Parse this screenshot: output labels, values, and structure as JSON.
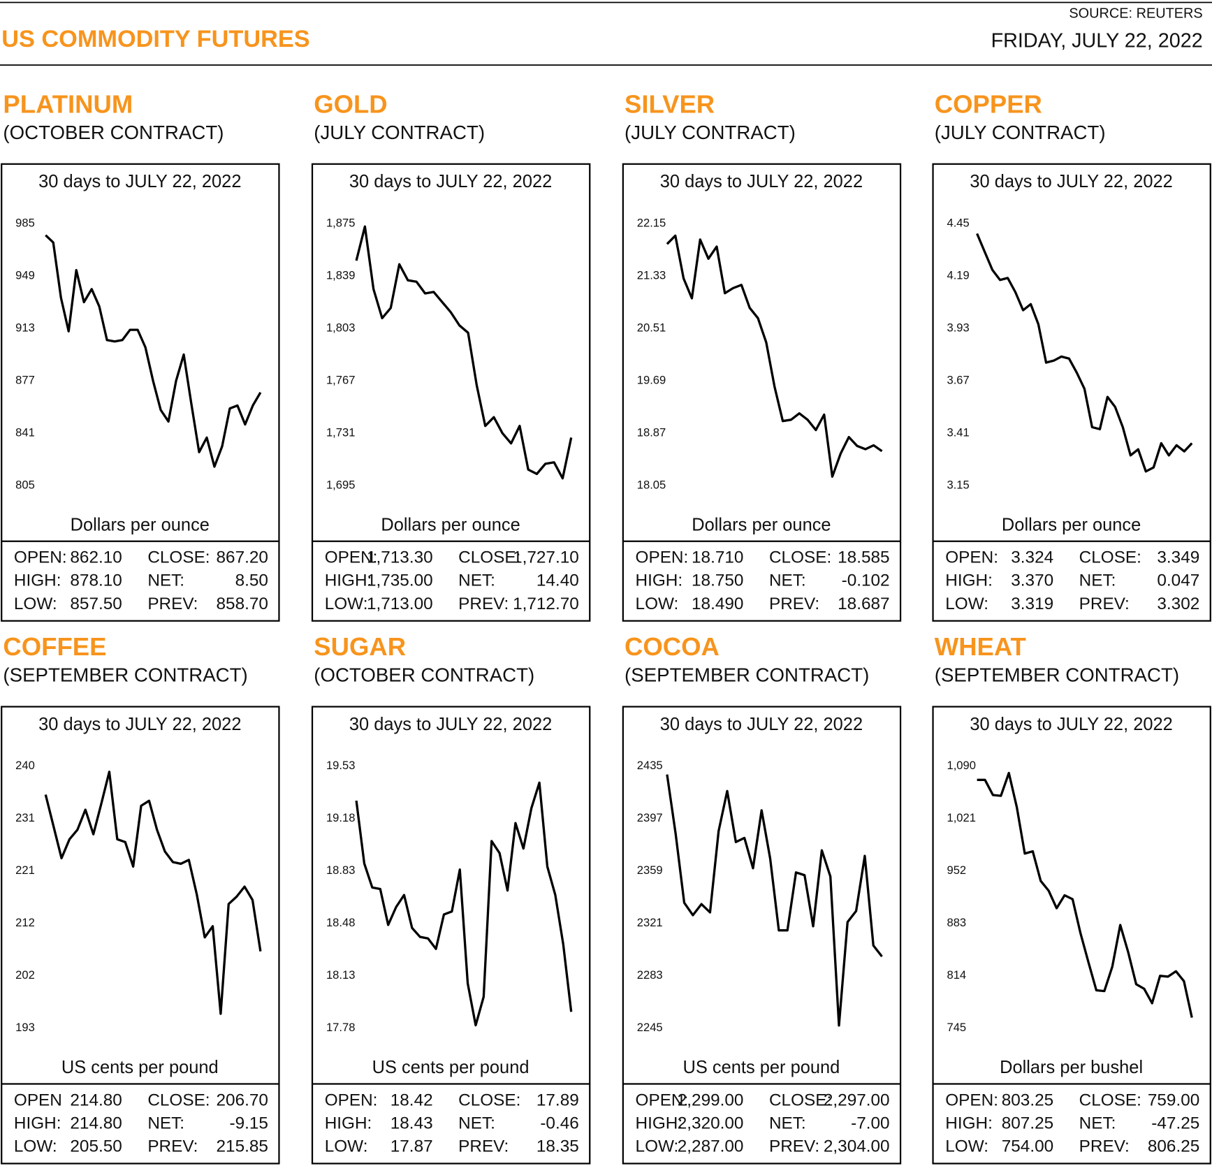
{
  "header": {
    "title": "US COMMODITY FUTURES",
    "source": "SOURCE: REUTERS",
    "date": "FRIDAY, JULY 22, 2022"
  },
  "chart_data": [
    {
      "type": "line",
      "title": "PLATINUM",
      "subtitle": "(OCTOBER CONTRACT)",
      "note": "30 days to JULY 22, 2022",
      "y_label": "Dollars per ounce",
      "color": "#000000",
      "values": [
        977,
        972,
        934,
        911,
        953,
        931,
        940,
        928,
        905,
        904,
        905,
        912,
        912,
        900,
        877,
        857,
        849,
        877,
        895,
        861,
        828,
        838,
        818,
        832,
        858,
        860,
        847,
        860,
        869
      ],
      "ylim": [
        805,
        985
      ],
      "yticks": [
        985,
        949,
        913,
        877,
        841,
        805
      ],
      "stats": [
        [
          "OPEN:",
          "862.10",
          "CLOSE:",
          "867.20"
        ],
        [
          "HIGH:",
          "878.10",
          "NET:",
          "8.50"
        ],
        [
          "LOW:",
          "857.50",
          "PREV:",
          "858.70"
        ]
      ]
    },
    {
      "type": "line",
      "title": "GOLD",
      "subtitle": "(JULY CONTRACT)",
      "note": "30 days to JULY 22, 2022",
      "y_label": "Dollars per ounce",
      "color": "#000000",
      "values": [
        1849.5,
        1873,
        1830,
        1810,
        1817,
        1847,
        1836,
        1835,
        1827,
        1828,
        1821,
        1814,
        1805,
        1800,
        1764,
        1736,
        1742,
        1731,
        1724,
        1736,
        1706,
        1703,
        1710,
        1711,
        1700,
        1728
      ],
      "ylim": [
        1695,
        1875
      ],
      "yticks": [
        {
          "value": 1875,
          "label": "1,875"
        },
        {
          "value": 1839,
          "label": "1,839"
        },
        {
          "value": 1803,
          "label": "1,803"
        },
        {
          "value": 1767,
          "label": "1,767"
        },
        {
          "value": 1731,
          "label": "1,731"
        },
        {
          "value": 1695,
          "label": "1,695"
        }
      ],
      "stats": [
        [
          "OPEN:",
          "1,713.30",
          "CLOSE:",
          "1,727.10"
        ],
        [
          "HIGH:",
          "1,735.00",
          "NET:",
          "14.40"
        ],
        [
          "LOW:",
          "1,713.00",
          "PREV:",
          "1,712.70"
        ]
      ]
    },
    {
      "type": "line",
      "title": "SILVER",
      "subtitle": "(JULY CONTRACT)",
      "note": "30 days to JULY 22, 2022",
      "y_label": "Dollars per ounce",
      "color": "#000000",
      "values": [
        21.83,
        21.96,
        21.29,
        20.98,
        21.9,
        21.6,
        21.79,
        21.06,
        21.14,
        21.19,
        20.83,
        20.67,
        20.29,
        19.6,
        19.06,
        19.08,
        19.18,
        19.08,
        18.92,
        19.16,
        18.19,
        18.55,
        18.81,
        18.67,
        18.62,
        18.68,
        18.59
      ],
      "ylim": [
        18.05,
        22.15
      ],
      "yticks": [
        22.15,
        21.33,
        20.51,
        19.69,
        18.87,
        18.05
      ],
      "stats": [
        [
          "OPEN:",
          "18.710",
          "CLOSE:",
          "18.585"
        ],
        [
          "HIGH:",
          "18.750",
          "NET:",
          "-0.102"
        ],
        [
          "LOW:",
          "18.490",
          "PREV:",
          "18.687"
        ]
      ]
    },
    {
      "type": "line",
      "title": "COPPER",
      "subtitle": "(JULY CONTRACT)",
      "note": "30 days to JULY 22, 2022",
      "y_label": "Dollars per ounce",
      "color": "#000000",
      "values": [
        4.4,
        4.31,
        4.22,
        4.17,
        4.18,
        4.11,
        4.02,
        4.05,
        3.95,
        3.76,
        3.77,
        3.79,
        3.78,
        3.71,
        3.63,
        3.44,
        3.43,
        3.59,
        3.54,
        3.44,
        3.3,
        3.33,
        3.22,
        3.24,
        3.36,
        3.3,
        3.35,
        3.32,
        3.36
      ],
      "ylim": [
        3.15,
        4.45
      ],
      "yticks": [
        4.45,
        4.19,
        3.93,
        3.67,
        3.41,
        3.15
      ],
      "stats": [
        [
          "OPEN:",
          "3.324",
          "CLOSE:",
          "3.349"
        ],
        [
          "HIGH:",
          "3.370",
          "NET:",
          "0.047"
        ],
        [
          "LOW:",
          "3.319",
          "PREV:",
          "3.302"
        ]
      ]
    },
    {
      "type": "line",
      "title": "COFFEE",
      "subtitle": "(SEPTEMBER CONTRACT)",
      "note": "30 days to JULY 22, 2022",
      "y_label": "US cents per pound",
      "color": "#000000",
      "values": [
        234.9,
        229.2,
        223.5,
        226.9,
        228.6,
        232.2,
        227.8,
        233.3,
        239,
        226.9,
        226.4,
        222,
        232.9,
        233.8,
        228.6,
        224.7,
        222.8,
        222.5,
        223.2,
        217,
        209.3,
        211.3,
        195.6,
        215.3,
        216.6,
        218.4,
        216,
        206.8
      ],
      "ylim": [
        193,
        240
      ],
      "yticks": [
        240,
        {
          "value": 230.6,
          "label": "231"
        },
        {
          "value": 221.2,
          "label": "221"
        },
        {
          "value": 211.8,
          "label": "212"
        },
        {
          "value": 202.4,
          "label": "202"
        },
        193
      ],
      "stats": [
        [
          "OPEN",
          "214.80",
          "CLOSE:",
          "206.70"
        ],
        [
          "HIGH:",
          "214.80",
          "NET:",
          "-9.15"
        ],
        [
          "LOW:",
          "205.50",
          "PREV:",
          "215.85"
        ]
      ]
    },
    {
      "type": "line",
      "title": "SUGAR",
      "subtitle": "(OCTOBER CONTRACT)",
      "note": "30 days to JULY 22, 2022",
      "y_label": "US cents per pound",
      "color": "#000000",
      "values": [
        19.3,
        18.88,
        18.72,
        18.71,
        18.47,
        18.59,
        18.67,
        18.45,
        18.39,
        18.38,
        18.31,
        18.54,
        18.56,
        18.84,
        18.08,
        17.8,
        17.99,
        19.03,
        18.95,
        18.7,
        19.15,
        18.98,
        19.25,
        19.42,
        18.86,
        18.67,
        18.34,
        17.89
      ],
      "ylim": [
        17.78,
        19.53
      ],
      "yticks": [
        19.53,
        19.18,
        18.83,
        18.48,
        18.13,
        17.78
      ],
      "stats": [
        [
          "OPEN:",
          "18.42",
          "CLOSE:",
          "17.89"
        ],
        [
          "HIGH:",
          "18.43",
          "NET:",
          "-0.46"
        ],
        [
          "LOW:",
          "17.87",
          "PREV:",
          "18.35"
        ]
      ]
    },
    {
      "type": "line",
      "title": "COCOA",
      "subtitle": "(SEPTEMBER CONTRACT)",
      "note": "30 days to JULY 22, 2022",
      "y_label": "US cents per pound",
      "color": "#000000",
      "values": [
        2429,
        2386,
        2336,
        2327,
        2335,
        2329,
        2388,
        2417,
        2380,
        2383,
        2361,
        2403,
        2368,
        2316,
        2316,
        2358,
        2356,
        2319,
        2374,
        2355,
        2247,
        2322,
        2330,
        2370,
        2305,
        2297
      ],
      "ylim": [
        2245,
        2435
      ],
      "yticks": [
        2435,
        2397,
        2359,
        2321,
        2283,
        2245
      ],
      "stats": [
        [
          "OPEN:",
          "2,299.00",
          "CLOSE:",
          "2,297.00"
        ],
        [
          "HIGH:",
          "2,320.00",
          "NET:",
          "-7.00"
        ],
        [
          "LOW:",
          "2,287.00",
          "PREV:",
          "2,304.00"
        ]
      ]
    },
    {
      "type": "line",
      "title": "WHEAT",
      "subtitle": "(SEPTEMBER CONTRACT)",
      "note": "30 days to JULY 22, 2022",
      "y_label": "Dollars per bushel",
      "color": "#000000",
      "values": [
        1072,
        1072,
        1052,
        1051,
        1081,
        1036,
        975,
        978,
        939,
        926,
        903,
        920,
        915,
        870,
        832,
        795,
        794,
        826,
        881,
        845,
        803,
        797,
        778,
        814,
        813,
        820,
        807,
        759
      ],
      "ylim": [
        745,
        1090
      ],
      "yticks": [
        {
          "value": 1090,
          "label": "1,090"
        },
        {
          "value": 1021,
          "label": "1,021"
        },
        952,
        883,
        814,
        745
      ],
      "stats": [
        [
          "OPEN:",
          "803.25",
          "CLOSE:",
          "759.00"
        ],
        [
          "HIGH:",
          "807.25",
          "NET:",
          "-47.25"
        ],
        [
          "LOW:",
          "754.00",
          "PREV:",
          "806.25"
        ]
      ]
    }
  ]
}
